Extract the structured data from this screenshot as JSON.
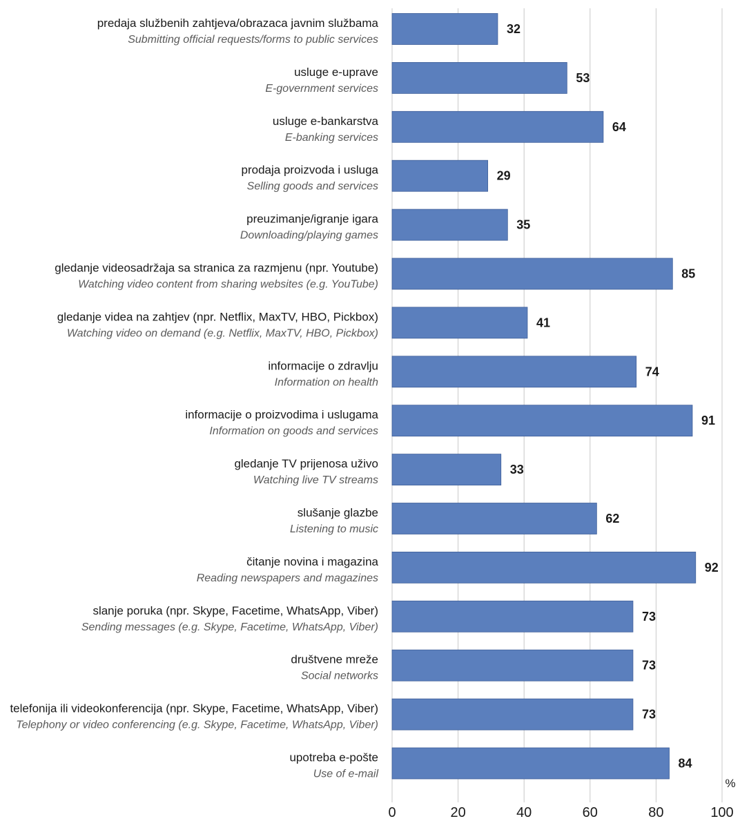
{
  "chart_data": {
    "type": "bar",
    "orientation": "horizontal",
    "unit_label": "%",
    "xlim": [
      0,
      100
    ],
    "x_ticks": [
      "0",
      "20",
      "40",
      "60",
      "80",
      "100"
    ],
    "grid": true,
    "bar_color": "#5b7fbd",
    "categories": [
      {
        "label": "predaja službenih zahtjeva/obrazaca javnim službama",
        "label_en": "Submitting official requests/forms to public services",
        "value": 32
      },
      {
        "label": "usluge e-uprave",
        "label_en": "E-government services",
        "value": 53
      },
      {
        "label": "usluge e-bankarstva",
        "label_en": "E-banking services",
        "value": 64
      },
      {
        "label": "prodaja proizvoda i usluga",
        "label_en": "Selling goods and services",
        "value": 29
      },
      {
        "label": "preuzimanje/igranje igara",
        "label_en": "Downloading/playing games",
        "value": 35
      },
      {
        "label": "gledanje videosadržaja sa stranica za razmjenu (npr. Youtube)",
        "label_en": "Watching video content from sharing  websites (e.g. YouTube)",
        "value": 85
      },
      {
        "label": "gledanje videa na zahtjev (npr. Netflix, MaxTV, HBO, Pickbox)",
        "label_en": "Watching video on demand (e.g. Netflix, MaxTV, HBO, Pickbox)",
        "value": 41
      },
      {
        "label": "informacije o zdravlju",
        "label_en": "Information on health",
        "value": 74
      },
      {
        "label": "informacije o proizvodima i uslugama",
        "label_en": "Information on goods and services",
        "value": 91
      },
      {
        "label": "gledanje TV prijenosa uživo",
        "label_en": "Watching live TV streams",
        "value": 33
      },
      {
        "label": "slušanje glazbe",
        "label_en": "Listening to music",
        "value": 62
      },
      {
        "label": "čitanje novina i magazina",
        "label_en": "Reading newspapers and magazines",
        "value": 92
      },
      {
        "label": "slanje poruka (npr. Skype, Facetime, WhatsApp, Viber)",
        "label_en": "Sending messages (e.g. Skype, Facetime, WhatsApp, Viber)",
        "value": 73
      },
      {
        "label": "društvene mreže",
        "label_en": "Social networks",
        "value": 73
      },
      {
        "label": "telefonija ili videokonferencija (npr. Skype, Facetime, WhatsApp, Viber)",
        "label_en": "Telephony or video conferencing (e.g. Skype, Facetime, WhatsApp, Viber)",
        "value": 73
      },
      {
        "label": "upotreba e-pošte",
        "label_en": "Use of e-mail",
        "value": 84
      }
    ]
  }
}
